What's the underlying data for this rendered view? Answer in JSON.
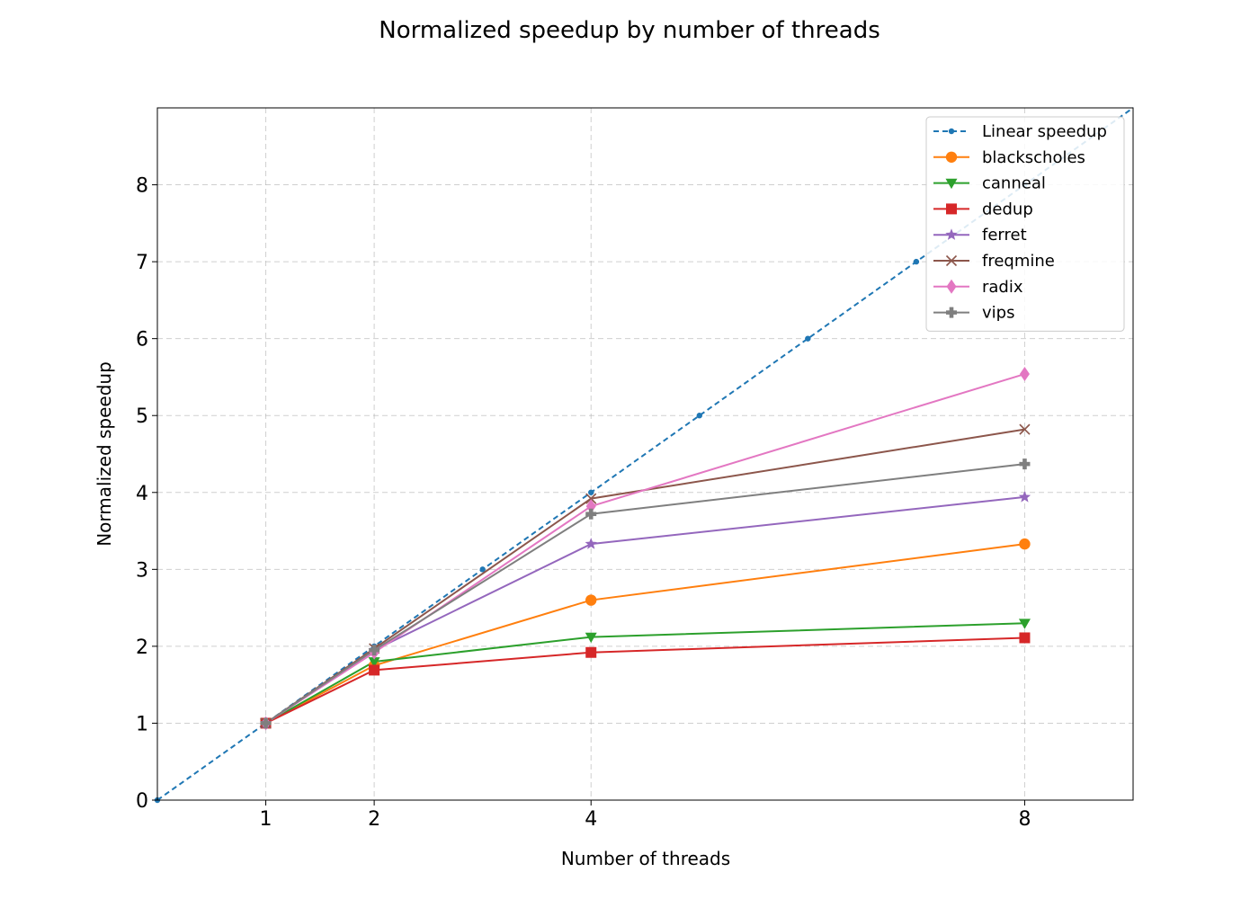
{
  "chart_data": {
    "type": "line",
    "title": "Normalized speedup by number of threads",
    "xlabel": "Number of threads",
    "ylabel": "Normalized speedup",
    "xlim": [
      0,
      9
    ],
    "ylim": [
      0,
      9
    ],
    "x_ticks": [
      1,
      2,
      4,
      8
    ],
    "y_ticks": [
      0,
      1,
      2,
      3,
      4,
      5,
      6,
      7,
      8
    ],
    "grid": true,
    "legend_position": "top-right",
    "reference": {
      "name": "Linear speedup",
      "color": "#1f77b4",
      "style": "dashed",
      "marker": "dot",
      "x": [
        0,
        1,
        2,
        3,
        4,
        5,
        6,
        7,
        8
      ],
      "y": [
        0,
        1,
        2,
        3,
        4,
        5,
        6,
        7,
        8
      ]
    },
    "x": [
      1,
      2,
      4,
      8
    ],
    "series": [
      {
        "name": "blackscholes",
        "color": "#ff7f0e",
        "marker": "circle",
        "values": [
          1.0,
          1.75,
          2.6,
          3.33
        ]
      },
      {
        "name": "canneal",
        "color": "#2ca02c",
        "marker": "triangle-down",
        "values": [
          1.0,
          1.8,
          2.12,
          2.3
        ]
      },
      {
        "name": "dedup",
        "color": "#d62728",
        "marker": "square",
        "values": [
          1.0,
          1.69,
          1.92,
          2.11
        ]
      },
      {
        "name": "ferret",
        "color": "#9467bd",
        "marker": "star",
        "values": [
          1.0,
          1.95,
          3.33,
          3.94
        ]
      },
      {
        "name": "freqmine",
        "color": "#8c564b",
        "marker": "x",
        "values": [
          1.0,
          1.97,
          3.92,
          4.82
        ]
      },
      {
        "name": "radix",
        "color": "#e377c2",
        "marker": "diamond",
        "values": [
          1.0,
          1.92,
          3.82,
          5.54
        ]
      },
      {
        "name": "vips",
        "color": "#7f7f7f",
        "marker": "plus",
        "values": [
          1.0,
          1.95,
          3.72,
          4.37
        ]
      }
    ]
  }
}
